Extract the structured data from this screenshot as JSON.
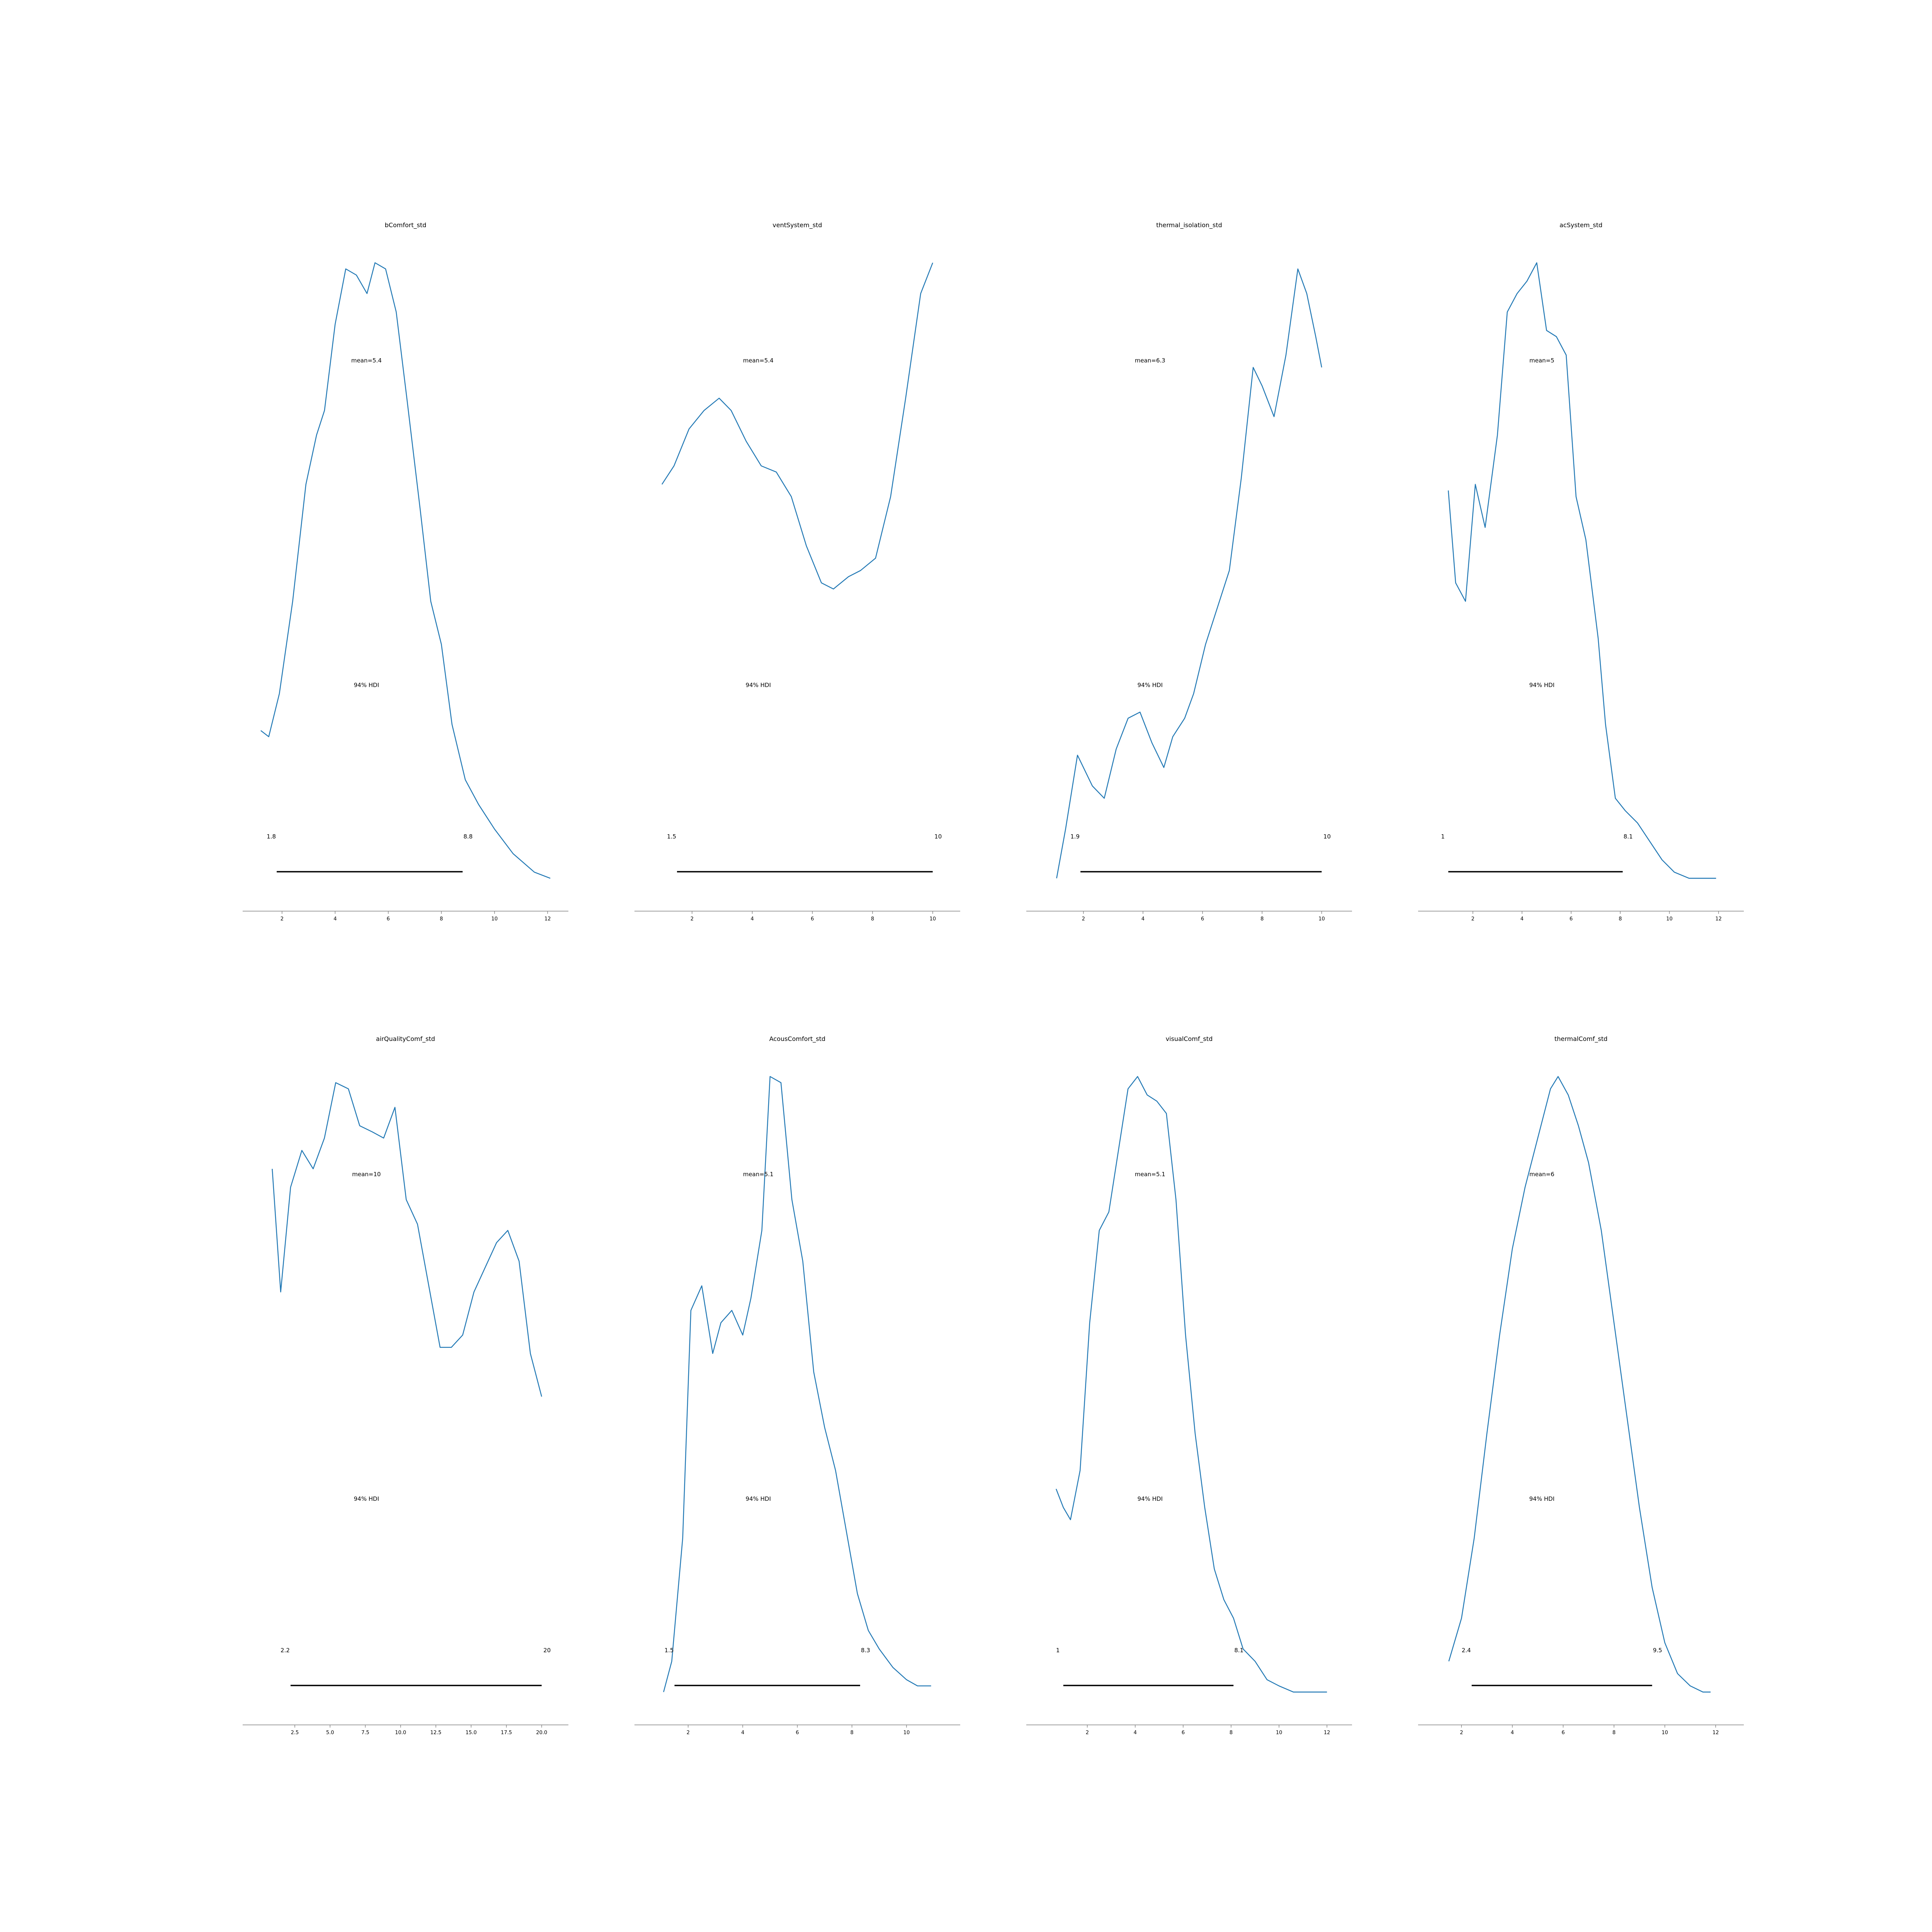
{
  "colors": {
    "curve": "#1f77b4",
    "hdi": "#000000",
    "axis": "#808080"
  },
  "chart_data": [
    {
      "type": "line",
      "title": "bComfort_std",
      "mean_label": "mean=5.4",
      "hdi_label": "94% HDI",
      "hdi": [
        1.8,
        8.8
      ],
      "hdi_labels": [
        "1.8",
        "8.8"
      ],
      "xlim": [
        1.1,
        12.2
      ],
      "ticks": [
        "2",
        "4",
        "6",
        "8",
        "10",
        "12"
      ],
      "x": [
        1.2,
        1.5,
        1.9,
        2.4,
        2.9,
        3.3,
        3.6,
        4.0,
        4.4,
        4.8,
        5.2,
        5.5,
        5.9,
        6.3,
        6.7,
        7.2,
        7.6,
        8.0,
        8.4,
        8.9,
        9.4,
        10.0,
        10.7,
        11.5,
        12.1
      ],
      "density": [
        0.24,
        0.23,
        0.3,
        0.45,
        0.64,
        0.72,
        0.76,
        0.9,
        0.99,
        0.98,
        0.95,
        1.0,
        0.99,
        0.92,
        0.78,
        0.6,
        0.45,
        0.38,
        0.25,
        0.16,
        0.12,
        0.08,
        0.04,
        0.01,
        0.0
      ]
    },
    {
      "type": "line",
      "title": "ventSystem_std",
      "mean_label": "mean=5.4",
      "hdi_label": "94% HDI",
      "hdi": [
        1.5,
        10
      ],
      "hdi_labels": [
        "1.5",
        "10"
      ],
      "xlim": [
        0.6,
        10.4
      ],
      "ticks": [
        "2",
        "4",
        "6",
        "8",
        "10"
      ],
      "x": [
        1.0,
        1.4,
        1.9,
        2.4,
        2.9,
        3.3,
        3.8,
        4.3,
        4.8,
        5.3,
        5.8,
        6.3,
        6.7,
        7.2,
        7.6,
        8.1,
        8.6,
        9.1,
        9.6,
        10.0
      ],
      "density": [
        0.64,
        0.67,
        0.73,
        0.76,
        0.78,
        0.76,
        0.71,
        0.67,
        0.66,
        0.62,
        0.54,
        0.48,
        0.47,
        0.49,
        0.5,
        0.52,
        0.62,
        0.78,
        0.95,
        1.0
      ]
    },
    {
      "type": "line",
      "title": "thermal_isolation_std",
      "mean_label": "mean=6.3",
      "hdi_label": "94% HDI",
      "hdi": [
        1.9,
        10
      ],
      "hdi_labels": [
        "1.9",
        "10"
      ],
      "xlim": [
        0.6,
        10.5
      ],
      "ticks": [
        "2",
        "4",
        "6",
        "8",
        "10"
      ],
      "x": [
        1.1,
        1.4,
        1.8,
        2.3,
        2.7,
        3.1,
        3.5,
        3.9,
        4.3,
        4.7,
        5.0,
        5.4,
        5.7,
        6.1,
        6.5,
        6.9,
        7.3,
        7.7,
        8.0,
        8.4,
        8.8,
        9.2,
        9.5,
        9.8,
        10.0
      ],
      "density": [
        0.0,
        0.08,
        0.2,
        0.15,
        0.13,
        0.21,
        0.26,
        0.27,
        0.22,
        0.18,
        0.23,
        0.26,
        0.3,
        0.38,
        0.44,
        0.5,
        0.65,
        0.83,
        0.8,
        0.75,
        0.85,
        0.99,
        0.95,
        0.88,
        0.83
      ]
    },
    {
      "type": "line",
      "title": "acSystem_std",
      "mean_label": "mean=5",
      "hdi_label": "94% HDI",
      "hdi": [
        1,
        8.1
      ],
      "hdi_labels": [
        "1",
        "8.1"
      ],
      "xlim": [
        0.4,
        12.4
      ],
      "ticks": [
        "2",
        "4",
        "6",
        "8",
        "10",
        "12"
      ],
      "x": [
        1.0,
        1.3,
        1.7,
        2.1,
        2.5,
        3.0,
        3.4,
        3.8,
        4.2,
        4.6,
        5.0,
        5.4,
        5.8,
        6.2,
        6.6,
        7.1,
        7.4,
        7.8,
        8.2,
        8.7,
        9.2,
        9.7,
        10.2,
        10.8,
        11.4,
        11.9
      ],
      "density": [
        0.63,
        0.48,
        0.45,
        0.64,
        0.57,
        0.72,
        0.92,
        0.95,
        0.97,
        1.0,
        0.89,
        0.88,
        0.85,
        0.62,
        0.55,
        0.39,
        0.25,
        0.13,
        0.11,
        0.09,
        0.06,
        0.03,
        0.01,
        0.0,
        0.0,
        0.0
      ]
    },
    {
      "type": "line",
      "title": "airQualityComf_std",
      "mean_label": "mean=10",
      "hdi_label": "94% HDI",
      "hdi": [
        2.2,
        20
      ],
      "hdi_labels": [
        "2.2",
        "20"
      ],
      "xlim": [
        -0.1,
        20.8
      ],
      "ticks": [
        "2.5",
        "5.0",
        "7.5",
        "10.0",
        "12.5",
        "15.0",
        "17.5",
        "20.0"
      ],
      "x": [
        0.9,
        1.5,
        2.2,
        3.0,
        3.8,
        4.6,
        5.4,
        6.3,
        7.1,
        8.0,
        8.8,
        9.6,
        10.4,
        11.2,
        12.0,
        12.8,
        13.6,
        14.4,
        15.2,
        16.0,
        16.8,
        17.6,
        18.4,
        19.2,
        20.0
      ],
      "density": [
        0.85,
        0.65,
        0.82,
        0.88,
        0.85,
        0.9,
        0.99,
        0.98,
        0.92,
        0.91,
        0.9,
        0.95,
        0.8,
        0.76,
        0.66,
        0.56,
        0.56,
        0.58,
        0.65,
        0.69,
        0.73,
        0.75,
        0.7,
        0.55,
        0.48
      ]
    },
    {
      "type": "line",
      "title": "AcousComfort_std",
      "mean_label": "mean=5.1",
      "hdi_label": "94% HDI",
      "hdi": [
        1.5,
        8.3
      ],
      "hdi_labels": [
        "1.5",
        "8.3"
      ],
      "xlim": [
        0.6,
        11.4
      ],
      "ticks": [
        "2",
        "4",
        "6",
        "8",
        "10"
      ],
      "x": [
        1.1,
        1.4,
        1.8,
        2.1,
        2.5,
        2.9,
        3.2,
        3.6,
        4.0,
        4.3,
        4.7,
        5.0,
        5.4,
        5.8,
        6.2,
        6.6,
        7.0,
        7.4,
        7.8,
        8.2,
        8.6,
        9.0,
        9.5,
        10.0,
        10.4,
        10.9
      ],
      "density": [
        0.0,
        0.05,
        0.25,
        0.62,
        0.66,
        0.55,
        0.6,
        0.62,
        0.58,
        0.64,
        0.75,
        1.0,
        0.99,
        0.8,
        0.7,
        0.52,
        0.43,
        0.36,
        0.26,
        0.16,
        0.1,
        0.07,
        0.04,
        0.02,
        0.01,
        0.01
      ]
    },
    {
      "type": "line",
      "title": "visualComf_std",
      "mean_label": "mean=5.1",
      "hdi_label": "94% HDI",
      "hdi": [
        1,
        8.1
      ],
      "hdi_labels": [
        "1",
        "8.1"
      ],
      "xlim": [
        0.1,
        12.4
      ],
      "ticks": [
        "2",
        "4",
        "6",
        "8",
        "10",
        "12"
      ],
      "x": [
        0.7,
        1.0,
        1.3,
        1.7,
        2.1,
        2.5,
        2.9,
        3.3,
        3.7,
        4.1,
        4.5,
        4.9,
        5.3,
        5.7,
        6.1,
        6.5,
        6.9,
        7.3,
        7.7,
        8.1,
        8.5,
        9.0,
        9.5,
        10.0,
        10.6,
        11.2,
        11.7,
        12.0
      ],
      "density": [
        0.33,
        0.3,
        0.28,
        0.36,
        0.6,
        0.75,
        0.78,
        0.88,
        0.98,
        1.0,
        0.97,
        0.96,
        0.94,
        0.8,
        0.58,
        0.42,
        0.3,
        0.2,
        0.15,
        0.12,
        0.07,
        0.05,
        0.02,
        0.01,
        0.0,
        0.0,
        0.0,
        0.0
      ]
    },
    {
      "type": "line",
      "title": "thermalComf_std",
      "mean_label": "mean=6",
      "hdi_label": "94% HDI",
      "hdi": [
        2.4,
        9.5
      ],
      "hdi_labels": [
        "2.4",
        "9.5"
      ],
      "xlim": [
        0.9,
        12.5
      ],
      "ticks": [
        "2",
        "4",
        "6",
        "8",
        "10",
        "12"
      ],
      "x": [
        1.5,
        2.0,
        2.5,
        3.0,
        3.5,
        4.0,
        4.5,
        5.0,
        5.5,
        5.8,
        6.2,
        6.6,
        7.0,
        7.5,
        8.0,
        8.5,
        9.0,
        9.5,
        10.0,
        10.5,
        11.0,
        11.5,
        11.8
      ],
      "density": [
        0.05,
        0.12,
        0.25,
        0.42,
        0.58,
        0.72,
        0.82,
        0.9,
        0.98,
        1.0,
        0.97,
        0.92,
        0.86,
        0.75,
        0.6,
        0.45,
        0.3,
        0.17,
        0.08,
        0.03,
        0.01,
        0.0,
        0.0
      ]
    }
  ]
}
